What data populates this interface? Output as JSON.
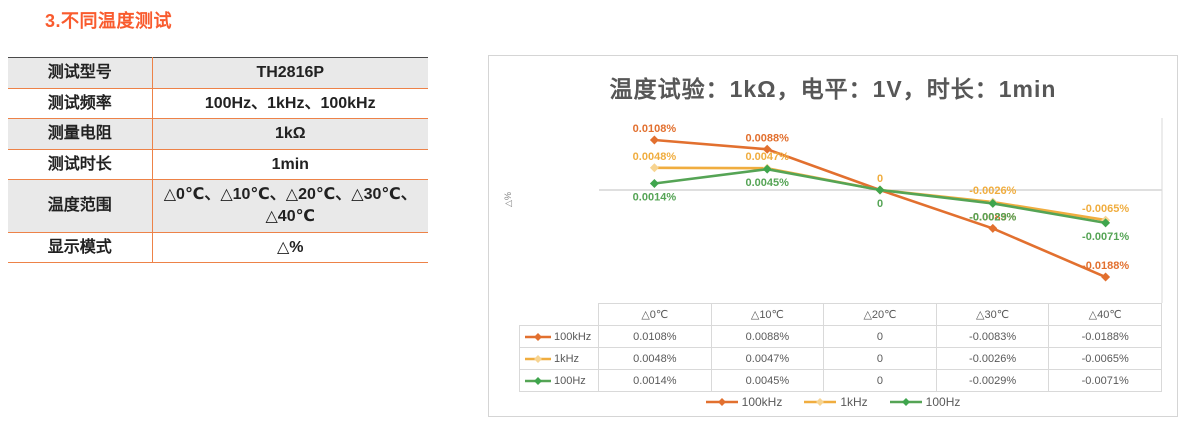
{
  "heading": "3.不同温度测试",
  "spec_table": {
    "rows": [
      {
        "label": "测试型号",
        "value": "TH2816P"
      },
      {
        "label": "测试频率",
        "value": "100Hz、1kHz、100kHz"
      },
      {
        "label": "测量电阻",
        "value": "1kΩ"
      },
      {
        "label": "测试时长",
        "value": "1min"
      },
      {
        "label": "温度范围",
        "value": "△0℃、△10℃、△20℃、△30℃、△40℃"
      },
      {
        "label": "显示模式",
        "value": "△%"
      }
    ]
  },
  "chart_data": {
    "type": "line",
    "title": "温度试验：1kΩ，电平：1V，时长：1min",
    "ylabel": "△%",
    "xlabel": "",
    "categories": [
      "△0℃",
      "△10℃",
      "△20℃",
      "△30℃",
      "△40℃"
    ],
    "series": [
      {
        "name": "100kHz",
        "color": "#E2702F",
        "marker_color": "#E2702F",
        "values": [
          0.0108,
          0.0088,
          0,
          -0.0083,
          -0.0188
        ],
        "labels": [
          "0.0108%",
          "0.0088%",
          "0",
          "-0.0083%",
          "-0.0188%"
        ]
      },
      {
        "name": "1kHz",
        "color": "#F0AD3F",
        "marker_color": "#F7D491",
        "values": [
          0.0048,
          0.0047,
          0,
          -0.0026,
          -0.0065
        ],
        "labels": [
          "0.0048%",
          "0.0047%",
          "0",
          "-0.0026%",
          "-0.0065%"
        ]
      },
      {
        "name": "100Hz",
        "color": "#55A455",
        "marker_color": "#3FA54D",
        "values": [
          0.0014,
          0.0045,
          0,
          -0.0029,
          -0.0071
        ],
        "labels": [
          "0.0014%",
          "0.0045%",
          "0",
          "-0.0029%",
          "-0.0071%"
        ]
      }
    ],
    "ylim": [
      -0.022,
      0.013
    ],
    "grid": "zero-line-only",
    "legend_position": "bottom",
    "data_table_shown": true,
    "colors": {
      "zero_line": "#BFBFBF",
      "plot_right_border": "#D9D9D9",
      "table_border": "#D9D9D9",
      "text": "#595959"
    }
  }
}
